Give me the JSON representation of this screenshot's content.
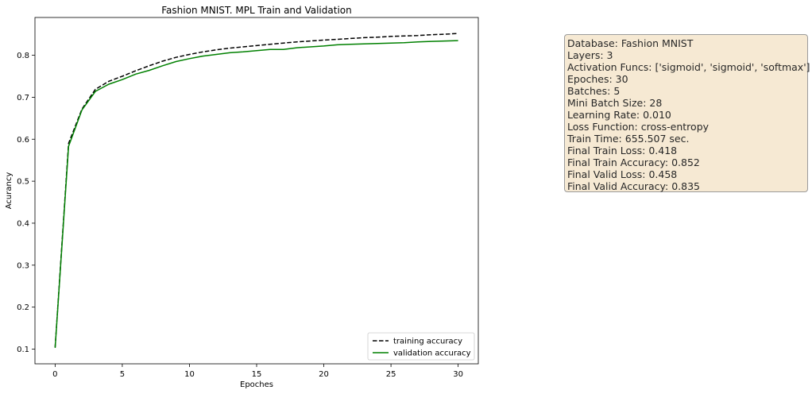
{
  "chart_data": {
    "type": "line",
    "title": "Fashion MNIST. MPL Train and Validation",
    "xlabel": "Epoches",
    "ylabel": "Acurancy",
    "xlim": [
      -1.5,
      31.5
    ],
    "ylim": [
      0.065,
      0.89
    ],
    "xticks": [
      0,
      5,
      10,
      15,
      20,
      25,
      30
    ],
    "yticks": [
      0.1,
      0.2,
      0.3,
      0.4,
      0.5,
      0.6,
      0.7,
      0.8
    ],
    "grid": false,
    "legend_position": "lower-right",
    "x": [
      0,
      1,
      2,
      3,
      4,
      5,
      6,
      7,
      8,
      9,
      10,
      11,
      12,
      13,
      14,
      15,
      16,
      17,
      18,
      19,
      20,
      21,
      22,
      23,
      24,
      25,
      26,
      27,
      28,
      29,
      30
    ],
    "series": [
      {
        "name": "training accuracy",
        "color": "#000000",
        "dash": "dashed",
        "values": [
          0.105,
          0.59,
          0.672,
          0.719,
          0.738,
          0.75,
          0.763,
          0.775,
          0.786,
          0.795,
          0.802,
          0.808,
          0.813,
          0.817,
          0.82,
          0.823,
          0.826,
          0.829,
          0.832,
          0.834,
          0.836,
          0.838,
          0.84,
          0.842,
          0.843,
          0.845,
          0.846,
          0.847,
          0.849,
          0.85,
          0.852
        ]
      },
      {
        "name": "validation accuracy",
        "color": "#008000",
        "dash": "solid",
        "values": [
          0.103,
          0.583,
          0.67,
          0.714,
          0.731,
          0.742,
          0.755,
          0.764,
          0.775,
          0.785,
          0.792,
          0.798,
          0.802,
          0.806,
          0.808,
          0.811,
          0.814,
          0.814,
          0.818,
          0.82,
          0.822,
          0.825,
          0.826,
          0.827,
          0.828,
          0.829,
          0.83,
          0.832,
          0.833,
          0.834,
          0.835
        ]
      }
    ]
  },
  "info_box": {
    "lines": [
      "Database: Fashion MNIST",
      "Layers: 3",
      "Activation Funcs: ['sigmoid', 'sigmoid', 'softmax']",
      "Epoches: 30",
      "Batches: 5",
      "Mini Batch Size: 28",
      "Learning Rate: 0.010",
      "Loss Function: cross-entropy",
      "Train Time: 655.507 sec.",
      "Final Train Loss: 0.418",
      "Final Train Accuracy: 0.852",
      "Final Valid Loss: 0.458",
      "Final Valid Accuracy: 0.835"
    ]
  }
}
